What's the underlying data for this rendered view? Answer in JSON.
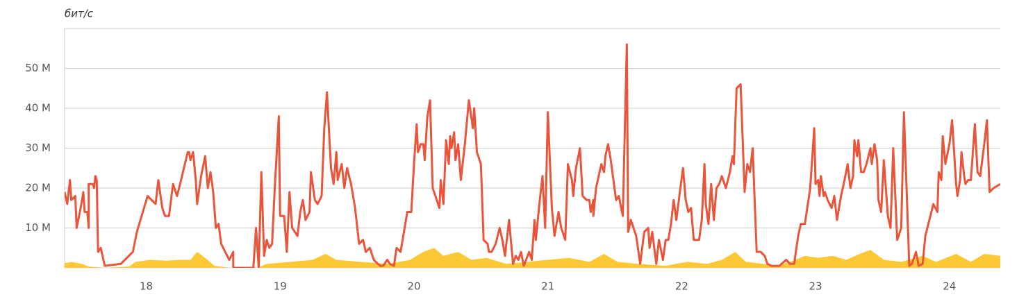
{
  "chart_data": {
    "type": "line",
    "y_label": "бит/с",
    "xlim": [
      17.39,
      24.38
    ],
    "xticks": [
      18,
      19,
      20,
      21,
      22,
      23,
      24
    ],
    "ylim": [
      0,
      60
    ],
    "yticks": [
      {
        "value": 10,
        "label": "10 M"
      },
      {
        "value": 20,
        "label": "20 M"
      },
      {
        "value": 30,
        "label": "30 M"
      },
      {
        "value": 40,
        "label": "40 M"
      },
      {
        "value": 50,
        "label": "50 M"
      }
    ],
    "grid": true,
    "series": [
      {
        "type": "area",
        "color": "#fcc934",
        "x": [
          17.39,
          17.44,
          17.52,
          17.57,
          17.69,
          17.87,
          17.92,
          18.03,
          18.15,
          18.26,
          18.33,
          18.38,
          18.44,
          18.51,
          18.62,
          18.83,
          18.9,
          19.08,
          19.24,
          19.34,
          19.42,
          19.6,
          19.81,
          19.97,
          20.07,
          20.15,
          20.22,
          20.33,
          20.43,
          20.54,
          20.69,
          20.85,
          21.0,
          21.16,
          21.31,
          21.42,
          21.52,
          21.67,
          21.88,
          22.04,
          22.19,
          22.3,
          22.4,
          22.48,
          22.61,
          22.71,
          22.81,
          22.92,
          23.02,
          23.13,
          23.23,
          23.33,
          23.41,
          23.51,
          23.64,
          23.8,
          23.9,
          24.05,
          24.16,
          24.26,
          24.38
        ],
        "values": [
          1.2,
          1.5,
          1,
          0.3,
          0,
          0.3,
          1.5,
          2,
          1.8,
          2,
          2,
          4,
          2.5,
          0.5,
          0,
          0,
          1,
          1.5,
          2,
          3.5,
          2,
          1.5,
          1,
          2,
          4,
          5,
          3,
          4,
          2,
          2.5,
          1,
          1.5,
          2,
          2.5,
          1.5,
          3.5,
          1.5,
          1,
          0.5,
          1.5,
          1,
          2,
          4,
          1.5,
          1,
          0.5,
          1.5,
          3,
          2.5,
          3,
          2,
          3.5,
          4.5,
          2,
          1.5,
          3,
          1.5,
          3.5,
          1.5,
          3.5,
          3
        ]
      },
      {
        "type": "line",
        "color": "#e8553a",
        "x": [
          17.39,
          17.41,
          17.43,
          17.44,
          17.47,
          17.48,
          17.51,
          17.53,
          17.54,
          17.56,
          17.57,
          17.57,
          17.6,
          17.61,
          17.62,
          17.63,
          17.64,
          17.66,
          17.69,
          17.81,
          17.9,
          17.93,
          18.01,
          18.07,
          18.09,
          18.12,
          18.14,
          18.17,
          18.2,
          18.23,
          18.26,
          18.31,
          18.32,
          18.33,
          18.35,
          18.37,
          18.38,
          18.41,
          18.44,
          18.46,
          18.48,
          18.5,
          18.52,
          18.54,
          18.56,
          18.62,
          18.65,
          18.65,
          18.8,
          18.82,
          18.84,
          18.86,
          18.88,
          18.9,
          18.92,
          18.94,
          18.96,
          18.99,
          19.0,
          19.03,
          19.05,
          19.07,
          19.09,
          19.13,
          19.15,
          19.17,
          19.19,
          19.22,
          19.23,
          19.26,
          19.28,
          19.31,
          19.33,
          19.35,
          19.38,
          19.4,
          19.42,
          19.43,
          19.46,
          19.48,
          19.5,
          19.53,
          19.56,
          19.58,
          19.59,
          19.62,
          19.64,
          19.67,
          19.7,
          19.73,
          19.75,
          19.77,
          19.8,
          19.82,
          19.85,
          19.87,
          19.9,
          19.93,
          19.95,
          19.98,
          20.0,
          20.02,
          20.03,
          20.05,
          20.07,
          20.08,
          20.1,
          20.12,
          20.14,
          20.17,
          20.19,
          20.2,
          20.22,
          20.24,
          20.26,
          20.27,
          20.28,
          20.3,
          20.31,
          20.33,
          20.35,
          20.38,
          20.41,
          20.44,
          20.45,
          20.47,
          20.5,
          20.52,
          20.55,
          20.56,
          20.58,
          20.61,
          20.64,
          20.66,
          20.68,
          20.71,
          20.74,
          20.76,
          20.78,
          20.8,
          20.82,
          20.86,
          20.88,
          20.9,
          20.91,
          20.94,
          20.96,
          20.98,
          21.0,
          21.03,
          21.05,
          21.08,
          21.1,
          21.13,
          21.15,
          21.18,
          21.19,
          21.21,
          21.24,
          21.26,
          21.29,
          21.31,
          21.32,
          21.34,
          21.34,
          21.36,
          21.4,
          21.42,
          21.43,
          21.45,
          21.47,
          21.49,
          21.51,
          21.53,
          21.56,
          21.59,
          21.6,
          21.62,
          21.64,
          21.66,
          21.69,
          21.72,
          21.75,
          21.76,
          21.78,
          21.81,
          21.83,
          21.86,
          21.88,
          21.9,
          21.92,
          21.94,
          21.96,
          21.99,
          22.01,
          22.03,
          22.05,
          22.07,
          22.09,
          22.13,
          22.15,
          22.17,
          22.18,
          22.2,
          22.22,
          22.24,
          22.26,
          22.28,
          22.3,
          22.33,
          22.36,
          22.38,
          22.39,
          22.41,
          22.44,
          22.47,
          22.49,
          22.51,
          22.53,
          22.56,
          22.59,
          22.62,
          22.64,
          22.67,
          22.73,
          22.78,
          22.81,
          22.84,
          22.87,
          22.89,
          22.92,
          22.96,
          22.99,
          23.0,
          23.02,
          23.03,
          23.04,
          23.06,
          23.07,
          23.09,
          23.12,
          23.14,
          23.16,
          23.19,
          23.21,
          23.24,
          23.26,
          23.28,
          23.29,
          23.31,
          23.32,
          23.34,
          23.36,
          23.38,
          23.41,
          23.42,
          23.44,
          23.46,
          23.47,
          23.49,
          23.51,
          23.54,
          23.56,
          23.58,
          23.61,
          23.64,
          23.66,
          23.7,
          23.72,
          23.75,
          23.77,
          23.8,
          23.82,
          23.85,
          23.88,
          23.91,
          23.92,
          23.94,
          23.95,
          23.97,
          24.0,
          24.02,
          24.05,
          24.06,
          24.08,
          24.09,
          24.11,
          24.12,
          24.14,
          24.16,
          24.19,
          24.21,
          24.23,
          24.26,
          24.28,
          24.3,
          24.33,
          24.38
        ],
        "values": [
          19,
          16,
          22,
          17,
          18,
          10,
          15,
          19,
          14,
          14,
          10,
          21,
          21,
          20,
          23,
          22,
          4,
          5,
          0.5,
          1,
          4,
          9,
          18,
          16,
          22,
          15,
          13,
          13,
          21,
          18,
          22,
          29,
          29,
          27,
          29,
          22,
          16,
          23,
          28,
          20,
          24,
          19,
          10,
          11,
          6,
          2,
          4,
          0,
          0,
          10,
          0,
          24,
          3,
          7,
          5,
          6,
          20,
          38,
          13,
          13,
          4,
          19,
          10,
          8,
          14,
          17,
          12,
          14,
          24,
          17,
          16,
          18,
          35,
          44,
          25,
          21,
          29,
          22,
          26,
          20,
          25,
          21,
          15,
          9,
          6,
          7,
          4,
          5,
          2,
          1,
          0.5,
          0.5,
          2,
          1,
          0.5,
          5,
          4,
          10,
          14,
          14,
          26,
          36,
          29,
          31,
          31,
          27,
          38,
          42,
          20,
          17,
          15,
          22,
          16,
          32,
          26,
          33,
          30,
          34,
          27,
          31,
          22,
          31,
          42,
          35,
          40,
          29,
          26,
          7,
          6,
          4,
          4,
          6,
          10,
          7,
          3,
          12,
          1,
          3,
          2,
          4,
          0.5,
          4,
          2,
          12,
          7,
          17,
          23,
          10,
          39,
          15,
          8,
          14,
          10,
          7,
          26,
          22,
          18,
          25,
          30,
          18,
          17,
          17,
          14,
          17,
          13,
          20,
          26,
          24,
          28,
          31,
          27,
          22,
          17,
          18,
          13,
          56,
          9,
          12,
          10,
          8,
          1,
          9,
          10,
          5,
          9,
          1,
          7,
          2,
          7,
          7,
          11,
          17,
          12,
          20,
          25,
          17,
          14,
          15,
          7,
          7,
          12,
          26,
          16,
          11,
          21,
          12,
          20,
          21,
          23,
          20,
          24,
          28,
          26,
          45,
          46,
          19,
          26,
          24,
          30,
          4,
          4,
          3,
          1,
          0.5,
          0.5,
          2,
          1,
          1,
          8,
          11,
          11,
          20,
          35,
          21,
          22,
          18,
          23,
          18,
          19,
          17,
          15,
          18,
          12,
          18,
          21,
          26,
          20,
          23,
          32,
          28,
          32,
          24,
          24,
          26,
          30,
          26,
          31,
          27,
          17,
          14,
          27,
          13,
          10,
          30,
          7,
          10,
          39,
          0.5,
          1,
          4,
          0.5,
          1,
          8,
          12,
          16,
          14,
          24,
          22,
          33,
          26,
          31,
          37,
          21,
          18,
          22,
          29,
          23,
          21,
          22,
          22,
          36,
          24,
          23,
          31,
          37,
          19,
          20,
          21
        ]
      }
    ]
  }
}
